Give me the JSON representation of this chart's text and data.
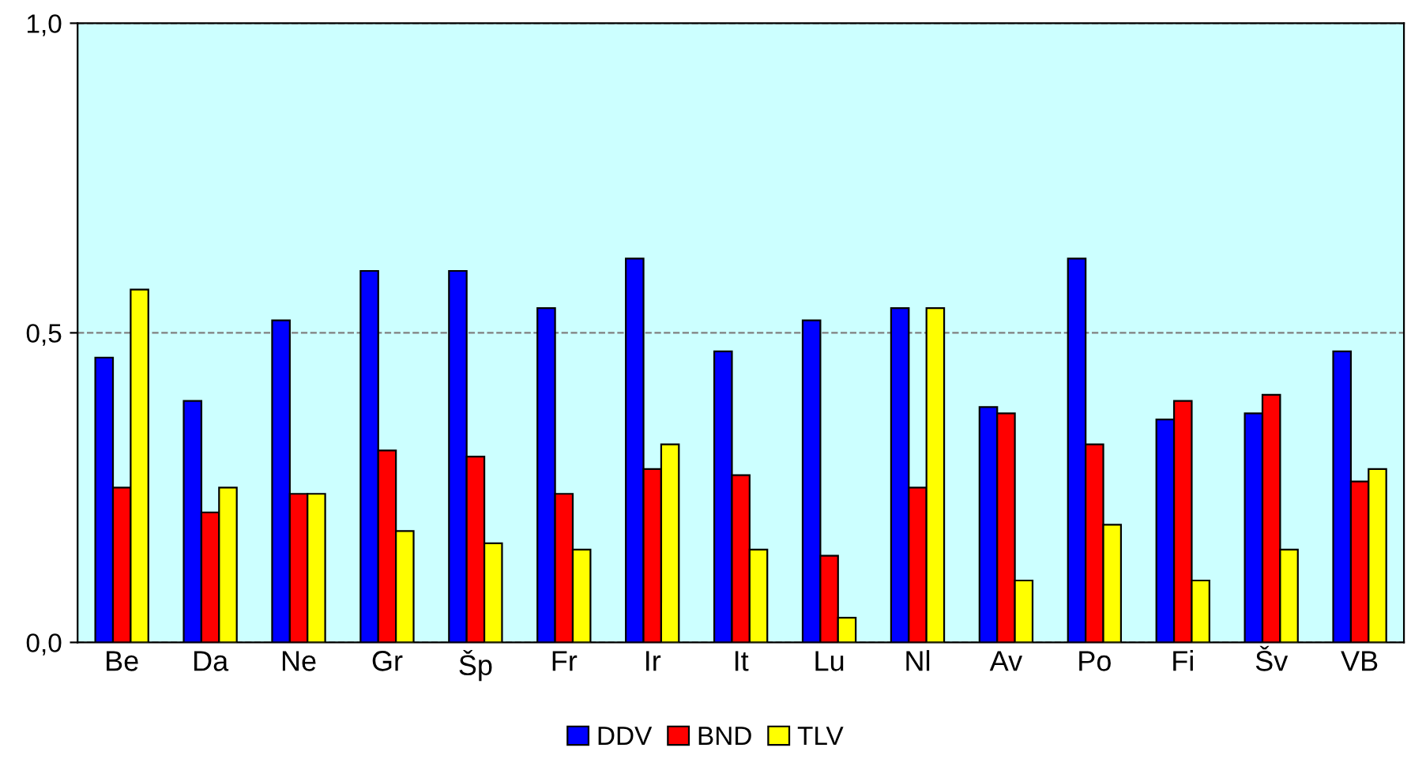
{
  "chart_data": {
    "type": "bar",
    "categories": [
      "Be",
      "Da",
      "Ne",
      "Gr",
      "Šp",
      "Fr",
      "Ir",
      "It",
      "Lu",
      "Nl",
      "Av",
      "Po",
      "Fi",
      "Šv",
      "VB"
    ],
    "series": [
      {
        "name": "DDV",
        "color": "#0000ff",
        "values": [
          0.46,
          0.39,
          0.52,
          0.6,
          0.6,
          0.54,
          0.62,
          0.47,
          0.52,
          0.54,
          0.38,
          0.62,
          0.36,
          0.37,
          0.47
        ]
      },
      {
        "name": "BND",
        "color": "#ff0000",
        "values": [
          0.25,
          0.21,
          0.24,
          0.31,
          0.3,
          0.24,
          0.28,
          0.27,
          0.14,
          0.25,
          0.37,
          0.32,
          0.39,
          0.4,
          0.26
        ]
      },
      {
        "name": "TLV",
        "color": "#ffff00",
        "values": [
          0.57,
          0.25,
          0.24,
          0.18,
          0.16,
          0.15,
          0.32,
          0.15,
          0.04,
          0.54,
          0.1,
          0.19,
          0.1,
          0.15,
          0.28
        ]
      }
    ],
    "ylim": [
      0,
      1
    ],
    "yticks": [
      {
        "value": 0,
        "label": "0,0"
      },
      {
        "value": 0.5,
        "label": "0,5"
      },
      {
        "value": 1,
        "label": "1,0"
      }
    ],
    "grid": "y",
    "legend": "bottom"
  }
}
